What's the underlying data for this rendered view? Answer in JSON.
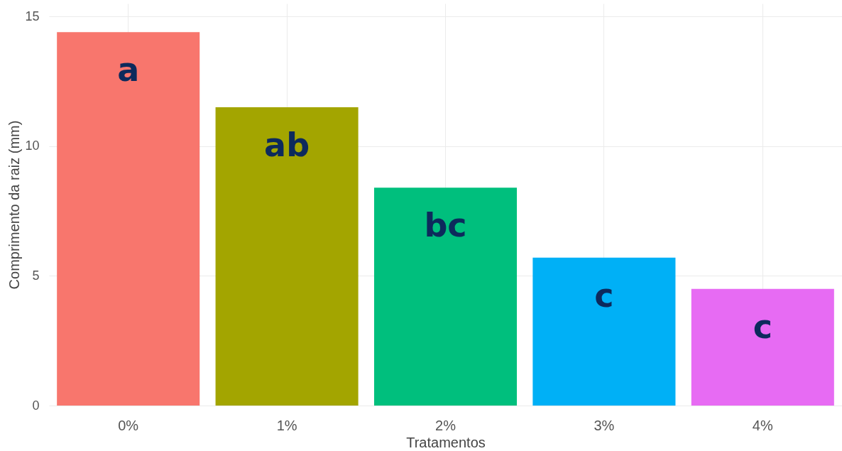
{
  "chart_data": {
    "type": "bar",
    "xlabel": "Tratamentos",
    "ylabel": "Comprimento da raiz (mm)",
    "categories": [
      "0%",
      "1%",
      "2%",
      "3%",
      "4%"
    ],
    "values": [
      14.4,
      11.5,
      8.4,
      5.7,
      4.5
    ],
    "colors": [
      "#f8766d",
      "#a3a500",
      "#00bf7d",
      "#00b0f6",
      "#e76bf3"
    ],
    "ylim": [
      0,
      15.5
    ],
    "yticks": [
      0,
      5,
      10,
      15
    ],
    "grid": true,
    "annotations": [
      "a",
      "ab",
      "bc",
      "c",
      "c"
    ]
  }
}
